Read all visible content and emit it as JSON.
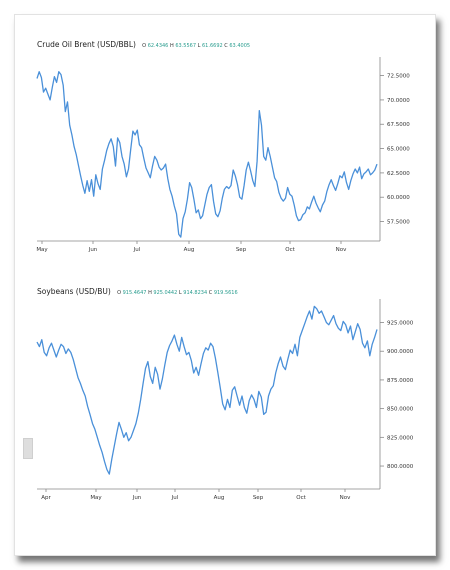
{
  "chart_data": [
    {
      "type": "line",
      "title": "Crude Oil Brent (USD/BBL)",
      "ohlc": [
        {
          "label": "O",
          "value": "62.4346"
        },
        {
          "label": "H",
          "value": "63.5567"
        },
        {
          "label": "L",
          "value": "61.6692"
        },
        {
          "label": "C",
          "value": "63.4005"
        }
      ],
      "x_ticks": [
        "May",
        "Jun",
        "Jul",
        "Aug",
        "Sep",
        "Oct",
        "Nov"
      ],
      "y_ticks": [
        "72.5000",
        "70.0000",
        "67.5000",
        "65.0000",
        "62.5000",
        "60.0000",
        "57.5000"
      ],
      "ylim": [
        55.5,
        74.0
      ],
      "color": "#4a90d9",
      "series": [
        {
          "values": [
            72.2,
            72.9,
            72.3,
            70.8,
            71.2,
            70.6,
            70.0,
            71.3,
            72.4,
            71.8,
            72.9,
            72.6,
            71.5,
            68.8,
            69.8,
            67.4,
            66.4,
            65.2,
            64.4,
            63.3,
            62.2,
            61.2,
            60.4,
            61.7,
            60.6,
            61.8,
            60.1,
            62.3,
            61.4,
            60.8,
            62.9,
            63.8,
            64.8,
            65.5,
            66.0,
            65.2,
            63.2,
            66.1,
            65.6,
            64.2,
            63.4,
            62.1,
            62.9,
            64.9,
            66.8,
            66.4,
            66.9,
            65.4,
            65.1,
            64.0,
            63.0,
            62.5,
            62.0,
            63.2,
            64.2,
            63.8,
            63.1,
            62.8,
            63.0,
            63.4,
            61.9,
            60.8,
            60.1,
            59.1,
            58.3,
            56.2,
            55.9,
            57.8,
            58.5,
            59.8,
            61.5,
            61.0,
            59.8,
            58.4,
            58.7,
            57.8,
            58.1,
            59.2,
            60.3,
            61.0,
            61.3,
            59.6,
            58.3,
            58.0,
            58.6,
            59.9,
            60.8,
            61.1,
            60.9,
            61.2,
            62.8,
            62.2,
            61.3,
            60.0,
            59.8,
            61.2,
            62.8,
            63.6,
            62.7,
            61.7,
            61.1,
            63.7,
            68.9,
            67.4,
            64.2,
            63.8,
            65.1,
            64.2,
            63.1,
            62.0,
            61.6,
            60.5,
            59.9,
            59.6,
            59.9,
            61.0,
            60.3,
            60.1,
            59.2,
            58.1,
            57.6,
            57.7,
            58.2,
            58.4,
            59.0,
            58.8,
            59.5,
            60.1,
            59.4,
            58.9,
            58.5,
            59.2,
            59.6,
            60.6,
            61.3,
            61.8,
            61.2,
            60.7,
            61.4,
            62.2,
            62.0,
            62.6,
            61.5,
            60.8,
            61.7,
            62.4,
            62.9,
            62.5,
            63.1,
            61.9,
            62.4,
            62.6,
            62.9,
            62.3,
            62.5,
            62.8,
            63.4
          ]
        }
      ]
    },
    {
      "type": "line",
      "title": "Soybeans (USD/BU)",
      "ohlc": [
        {
          "label": "O",
          "value": "915.4647"
        },
        {
          "label": "H",
          "value": "925.0442"
        },
        {
          "label": "L",
          "value": "914.8234"
        },
        {
          "label": "C",
          "value": "919.5616"
        }
      ],
      "x_ticks": [
        "Apr",
        "May",
        "Jun",
        "Jul",
        "Aug",
        "Sep",
        "Oct",
        "Nov"
      ],
      "y_ticks": [
        "925.0000",
        "900.0000",
        "875.0000",
        "850.0000",
        "825.0000",
        "800.0000"
      ],
      "ylim": [
        780,
        942
      ],
      "color": "#4a90d9",
      "series": [
        {
          "values": [
            908,
            904,
            910,
            899,
            896,
            903,
            907,
            901,
            895,
            901,
            906,
            904,
            898,
            902,
            899,
            893,
            885,
            877,
            872,
            866,
            861,
            852,
            845,
            837,
            832,
            825,
            818,
            812,
            804,
            797,
            793,
            806,
            817,
            828,
            838,
            832,
            825,
            829,
            822,
            825,
            831,
            837,
            846,
            858,
            872,
            885,
            891,
            878,
            872,
            886,
            880,
            867,
            876,
            888,
            899,
            905,
            909,
            914,
            906,
            900,
            912,
            904,
            897,
            899,
            892,
            881,
            886,
            879,
            889,
            898,
            903,
            901,
            907,
            904,
            894,
            881,
            868,
            854,
            849,
            858,
            851,
            866,
            869,
            861,
            853,
            861,
            851,
            846,
            857,
            862,
            858,
            851,
            865,
            860,
            845,
            847,
            861,
            867,
            870,
            881,
            889,
            895,
            887,
            884,
            893,
            901,
            898,
            906,
            896,
            912,
            918,
            924,
            930,
            935,
            928,
            939,
            937,
            933,
            935,
            930,
            925,
            923,
            927,
            931,
            924,
            920,
            918,
            926,
            923,
            916,
            922,
            910,
            917,
            924,
            919,
            907,
            903,
            909,
            896,
            906,
            912,
            919
          ]
        }
      ]
    }
  ]
}
